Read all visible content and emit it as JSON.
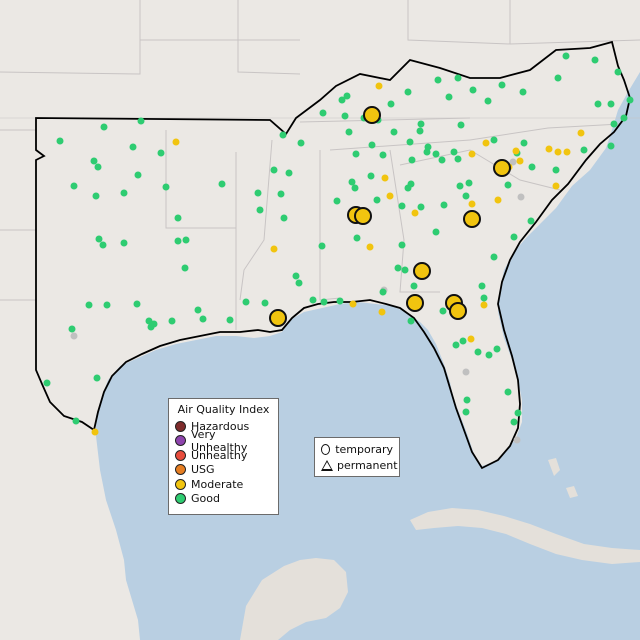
{
  "colors": {
    "water": "#b9cfe2",
    "land": "#ebe8e4",
    "land_south": "#e4e0da",
    "state_line": "#c8c4c4",
    "region_outline": "#000000",
    "good": "#2ecc71",
    "moderate": "#f1c40f",
    "nodata": "#c0c0c0"
  },
  "legend_aqi": {
    "title": "Air Quality Index",
    "items": [
      {
        "label": "Hazardous",
        "color": "#7e2b2b"
      },
      {
        "label": "Very Unhealthy",
        "color": "#8e44ad"
      },
      {
        "label": "Unhealthy",
        "color": "#e74c3c"
      },
      {
        "label": "USG",
        "color": "#e67e22"
      },
      {
        "label": "Moderate",
        "color": "#f1c40f"
      },
      {
        "label": "Good",
        "color": "#2ecc71"
      }
    ]
  },
  "legend_type": {
    "temporary": "temporary",
    "permanent": "permanent"
  },
  "monitors": [
    {
      "category": "moderate",
      "station": "temporary"
    },
    {
      "category": "good",
      "station": "permanent"
    },
    {
      "category": "nodata",
      "station": "permanent"
    }
  ]
}
